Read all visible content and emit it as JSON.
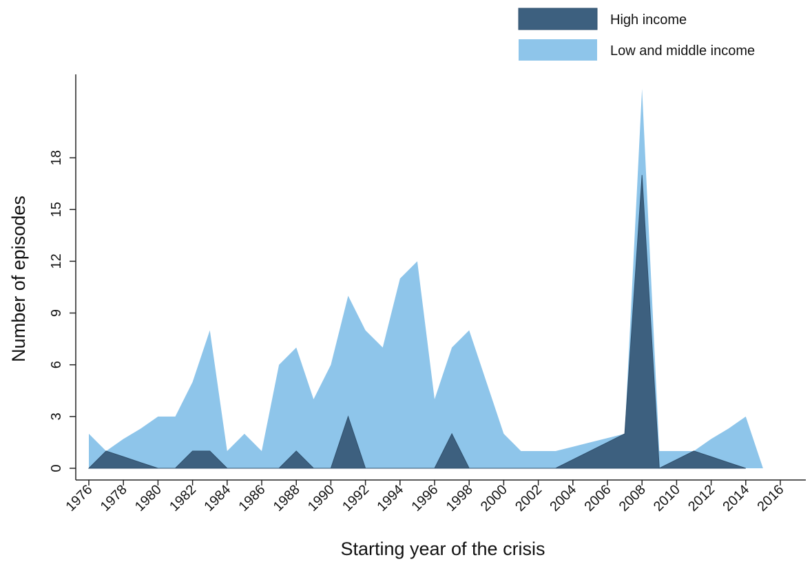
{
  "chart_data": {
    "type": "area",
    "xlabel": "Starting year of the crisis",
    "ylabel": "Number of episodes",
    "xlim": [
      1976,
      2016
    ],
    "ylim": [
      0,
      20
    ],
    "x_ticks": [
      "1976",
      "1978",
      "1980",
      "1982",
      "1984",
      "1986",
      "1988",
      "1990",
      "1992",
      "1994",
      "1996",
      "1998",
      "2000",
      "2002",
      "2004",
      "2006",
      "2008",
      "2010",
      "2012",
      "2014",
      "2016"
    ],
    "y_ticks": [
      "0",
      "3",
      "6",
      "9",
      "12",
      "15",
      "18"
    ],
    "grid": false,
    "legend_position": "top-right",
    "series": [
      {
        "name": "Low and middle income",
        "color": "#8ec5ea",
        "x": [
          1976,
          1977,
          1978,
          1979,
          1980,
          1981,
          1982,
          1983,
          1984,
          1985,
          1986,
          1987,
          1988,
          1989,
          1990,
          1991,
          1992,
          1993,
          1994,
          1995,
          1996,
          1997,
          1998,
          1999,
          2000,
          2001,
          2002,
          2003,
          2004,
          2005,
          2006,
          2007,
          2008,
          2009,
          2010,
          2011,
          2012,
          2013,
          2014,
          2015
        ],
        "values": [
          2,
          1,
          1.7,
          2.3,
          3,
          3,
          5,
          8,
          1,
          2,
          1,
          6,
          7,
          4,
          6,
          10,
          8,
          7,
          11,
          12,
          4,
          7,
          8,
          5,
          2,
          1,
          1,
          1,
          1.25,
          1.5,
          1.75,
          2,
          22,
          1,
          1,
          1,
          1.7,
          2.3,
          3,
          0
        ]
      },
      {
        "name": "High income",
        "color": "#3d607f",
        "x": [
          1976,
          1977,
          1978,
          1979,
          1980,
          1981,
          1982,
          1983,
          1984,
          1985,
          1986,
          1987,
          1988,
          1989,
          1990,
          1991,
          1992,
          1993,
          1994,
          1995,
          1996,
          1997,
          1998,
          1999,
          2000,
          2001,
          2002,
          2003,
          2004,
          2005,
          2006,
          2007,
          2008,
          2009,
          2010,
          2011,
          2012,
          2013,
          2014
        ],
        "values": [
          0,
          1,
          0.67,
          0.33,
          0,
          0,
          1,
          1,
          0,
          0,
          0,
          0,
          1,
          0,
          0,
          3,
          0,
          0,
          0,
          0,
          0,
          2,
          0,
          0,
          0,
          0,
          0,
          0,
          0.5,
          1,
          1.5,
          2,
          17,
          0,
          0.5,
          1,
          0.67,
          0.33,
          0
        ]
      }
    ],
    "legend": [
      {
        "label": "High income",
        "color": "#3d607f"
      },
      {
        "label": "Low and middle income",
        "color": "#8ec5ea"
      }
    ]
  }
}
